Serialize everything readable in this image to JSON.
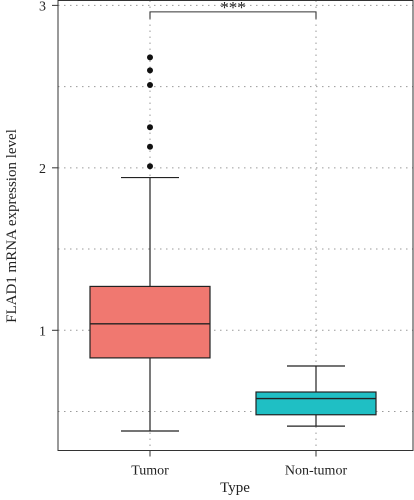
{
  "chart_data": {
    "type": "box",
    "xlabel": "Type",
    "ylabel": "FLAD1 mRNA expression level",
    "ylim": [
      0.26,
      3.03
    ],
    "yticks": [
      1,
      2,
      3
    ],
    "grid": true,
    "grid_style": "dotted",
    "legend": "none",
    "categories": [
      "Tumor",
      "Non-tumor"
    ],
    "boxes": [
      {
        "category": "Tumor",
        "color": "#F07870",
        "whisker_low": 0.38,
        "q1": 0.83,
        "median": 1.04,
        "q3": 1.27,
        "whisker_high": 1.94,
        "outliers": [
          2.01,
          2.13,
          2.25,
          2.51,
          2.6,
          2.68
        ]
      },
      {
        "category": "Non-tumor",
        "color": "#1FBFC4",
        "whisker_low": 0.41,
        "q1": 0.48,
        "median": 0.58,
        "q3": 0.62,
        "whisker_high": 0.78,
        "outliers": []
      }
    ],
    "significance": {
      "label": "***",
      "between": [
        "Tumor",
        "Non-tumor"
      ],
      "y": 2.96
    }
  }
}
